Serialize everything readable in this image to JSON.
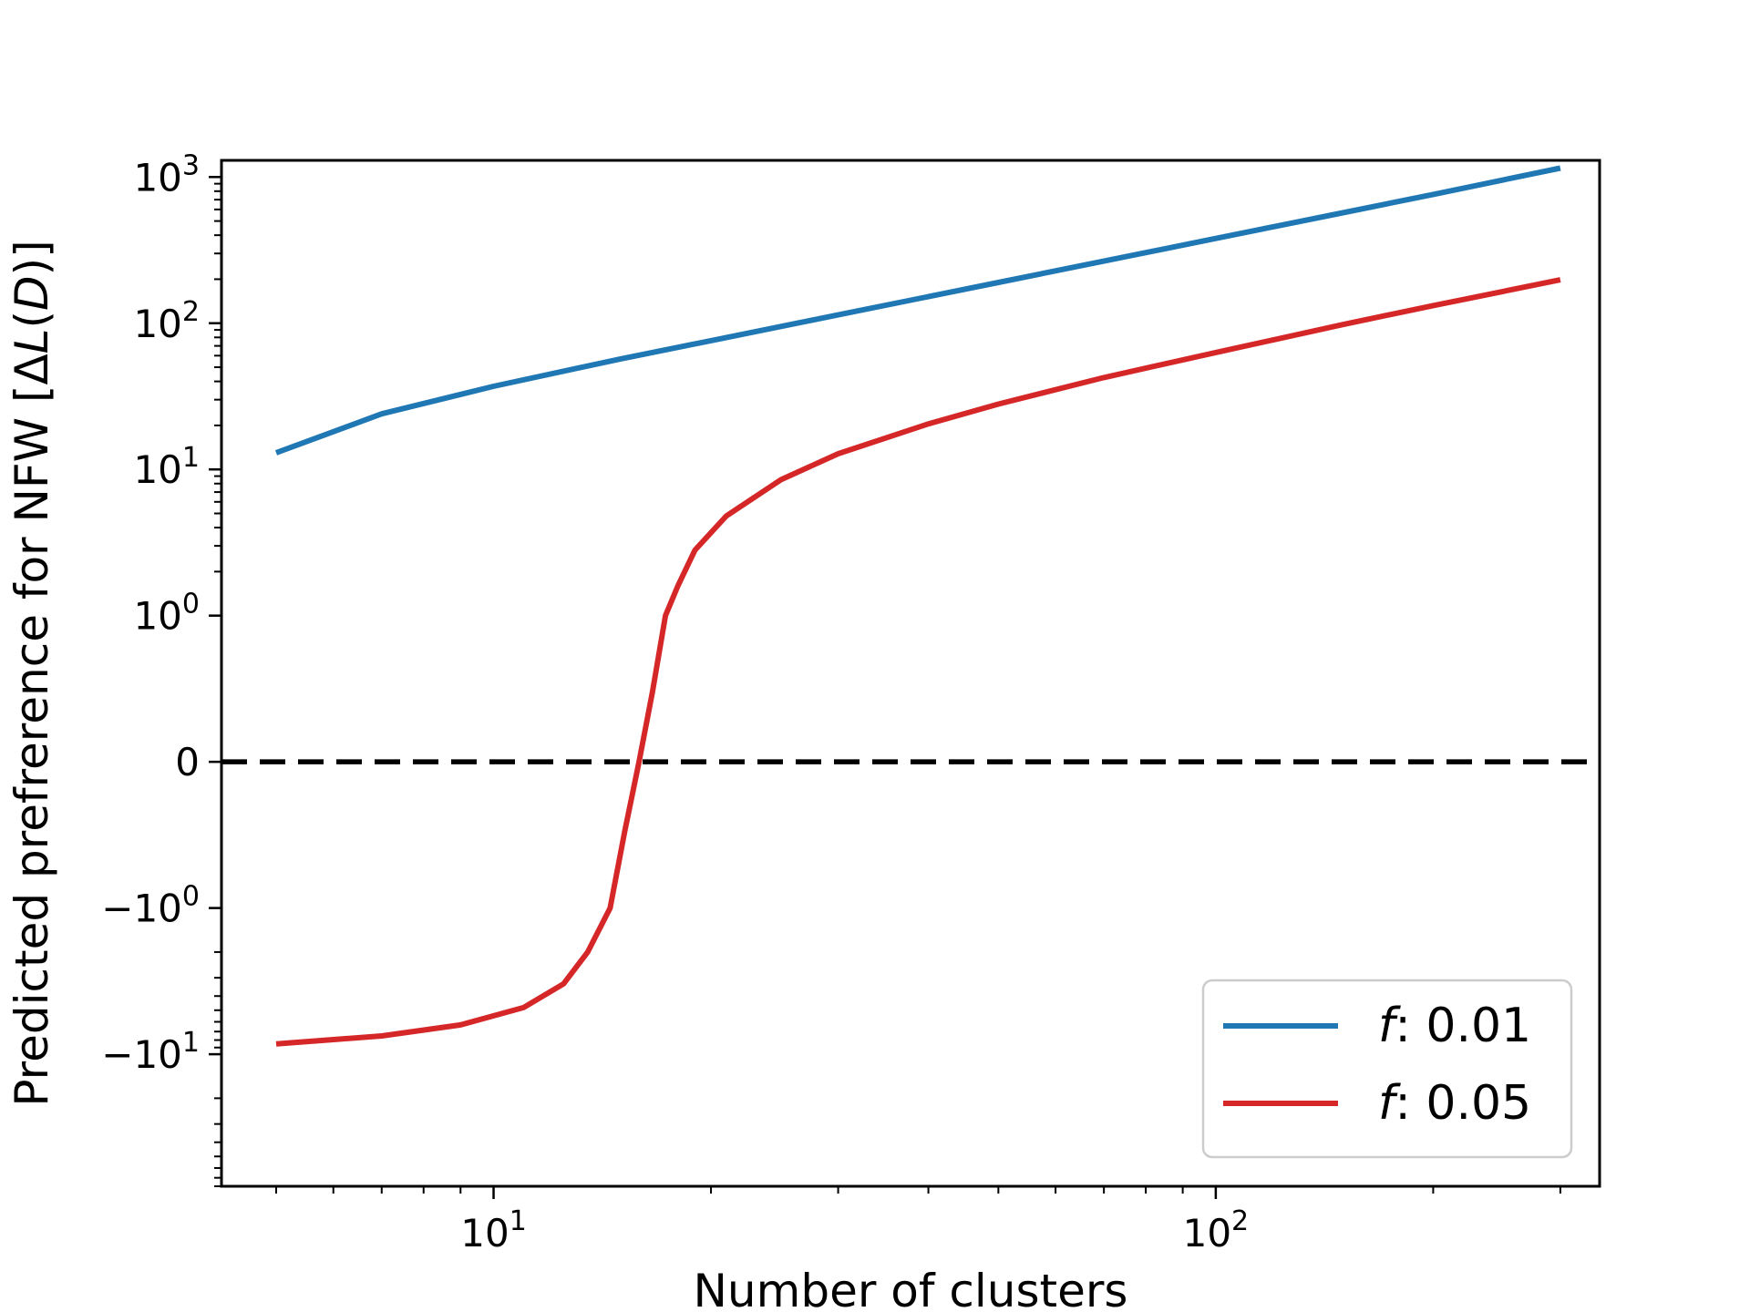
{
  "chart_data": {
    "type": "line",
    "xlabel": "Number of clusters",
    "ylabel": "Predicted prefrerence for NFW [ΔL(D)]",
    "ylabel_parts": {
      "main": "Predicted prefrerence for NFW [Δ",
      "italic": "L",
      "paren_open": "(",
      "italic2": "D",
      "close": ")]"
    },
    "x_scale": "log",
    "y_scale": "symlog",
    "y_linthresh": 1,
    "xlim": [
      4.2,
      340
    ],
    "ylim": [
      -80,
      1300
    ],
    "x_ticks": [
      {
        "value": 10,
        "base": "10",
        "exp": "1"
      },
      {
        "value": 100,
        "base": "10",
        "exp": "2"
      }
    ],
    "y_ticks": [
      {
        "value": -10,
        "label": "−10",
        "exp": "1"
      },
      {
        "value": -1,
        "label": "−10",
        "exp": "0"
      },
      {
        "value": 0,
        "label": "0",
        "exp": ""
      },
      {
        "value": 1,
        "label": "10",
        "exp": "0"
      },
      {
        "value": 10,
        "label": "10",
        "exp": "1"
      },
      {
        "value": 100,
        "label": "10",
        "exp": "2"
      },
      {
        "value": 1000,
        "label": "10",
        "exp": "3"
      }
    ],
    "reference_line": {
      "y": 0,
      "style": "dashed",
      "color": "#000000"
    },
    "legend": {
      "position": "lower-right"
    },
    "series": [
      {
        "name": "f: 0.01",
        "name_italic": "f",
        "name_rest": ": 0.01",
        "color": "#1f77b4",
        "x": [
          5,
          7,
          10,
          15,
          20,
          30,
          50,
          70,
          100,
          150,
          200,
          300
        ],
        "y": [
          13,
          24,
          37,
          57,
          76,
          114,
          190,
          266,
          380,
          570,
          760,
          1150
        ]
      },
      {
        "name": "f: 0.05",
        "name_italic": "f",
        "name_rest": ": 0.05",
        "color": "#d62728",
        "x": [
          5,
          7,
          9,
          11,
          12.5,
          13.5,
          14.5,
          15.2,
          15.9,
          16.6,
          17.3,
          18.0,
          19,
          21,
          25,
          30,
          40,
          50,
          70,
          100,
          150,
          200,
          300
        ],
        "y": [
          -8.5,
          -7.5,
          -6.3,
          -4.8,
          -3.3,
          -2.0,
          -1.0,
          -0.47,
          0.0,
          0.48,
          1.0,
          1.6,
          2.8,
          4.8,
          8.5,
          12.8,
          20.5,
          28.0,
          42.5,
          63.0,
          98.0,
          132.0,
          198.0
        ]
      }
    ]
  }
}
